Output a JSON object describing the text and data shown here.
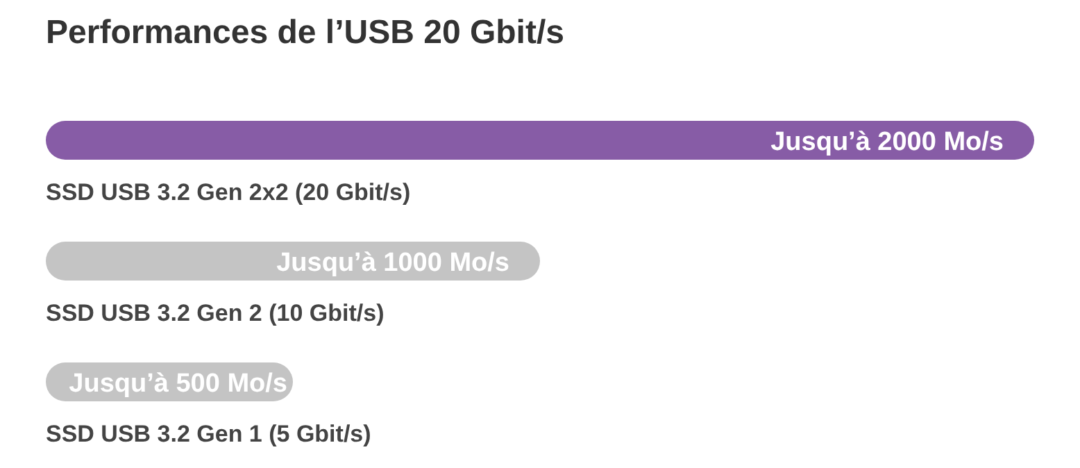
{
  "chart_data": {
    "type": "bar",
    "orientation": "horizontal",
    "title": "Performances de l’USB 20 Gbit/s",
    "categories": [
      "SSD USB 3.2 Gen 2x2 (20 Gbit/s)",
      "SSD USB 3.2 Gen 2 (10 Gbit/s)",
      "SSD USB 3.2 Gen 1 (5 Gbit/s)"
    ],
    "values": [
      2000,
      1000,
      500
    ],
    "colors": [
      "#875ca6",
      "#c4c4c4",
      "#c4c4c4"
    ],
    "value_labels": [
      "Jusqu’à 2000 Mo/s",
      "Jusqu’à 1000 Mo/s",
      "Jusqu’à 500 Mo/s"
    ],
    "legend": false,
    "grid": false
  }
}
